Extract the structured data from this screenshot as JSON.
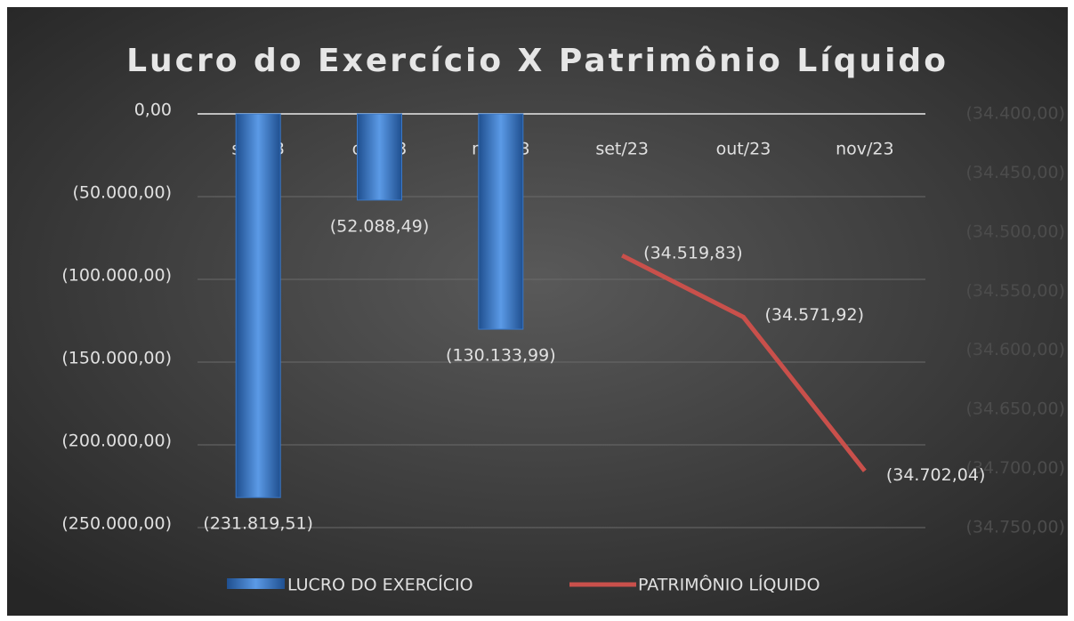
{
  "chart_data": {
    "type": "bar_line",
    "title": "Lucro do Exercício X Patrimônio Líquido",
    "categories": [
      "set/23",
      "out/23",
      "nov/23",
      "set/23",
      "out/23",
      "nov/23"
    ],
    "series": [
      {
        "name": "LUCRO DO EXERCÍCIO",
        "type": "bar",
        "color": "#3a78c8",
        "values": [
          -231819.51,
          -52088.49,
          -130133.99,
          null,
          null,
          null
        ],
        "value_labels": [
          "(231.819,51)",
          "(52.088,49)",
          "(130.133,99)",
          null,
          null,
          null
        ]
      },
      {
        "name": "PATRIMÔNIO LÍQUIDO",
        "type": "line",
        "axis": "y2",
        "color": "#c9504b",
        "values": [
          null,
          null,
          null,
          -34519.83,
          -34571.92,
          -34702.04
        ],
        "value_labels": [
          null,
          null,
          null,
          "(34.519,83)",
          "(34.571,92)",
          "(34.702,04)"
        ]
      }
    ],
    "ylim": [
      -250000,
      0
    ],
    "yticks": [
      {
        "value": 0,
        "label": "0,00"
      },
      {
        "value": -50000,
        "label": "(50.000,00)"
      },
      {
        "value": -100000,
        "label": "(100.000,00)"
      },
      {
        "value": -150000,
        "label": "(150.000,00)"
      },
      {
        "value": -200000,
        "label": "(200.000,00)"
      },
      {
        "value": -250000,
        "label": "(250.000,00)"
      }
    ],
    "y2lim": [
      -34750,
      -34400
    ],
    "y2ticks": [
      {
        "value": -34400,
        "label": "(34.400,00)"
      },
      {
        "value": -34450,
        "label": "(34.450,00)"
      },
      {
        "value": -34500,
        "label": "(34.500,00)"
      },
      {
        "value": -34550,
        "label": "(34.550,00)"
      },
      {
        "value": -34600,
        "label": "(34.600,00)"
      },
      {
        "value": -34650,
        "label": "(34.650,00)"
      },
      {
        "value": -34700,
        "label": "(34.700,00)"
      },
      {
        "value": -34750,
        "label": "(34.750,00)"
      }
    ],
    "grid": true,
    "legend": "bottom"
  }
}
